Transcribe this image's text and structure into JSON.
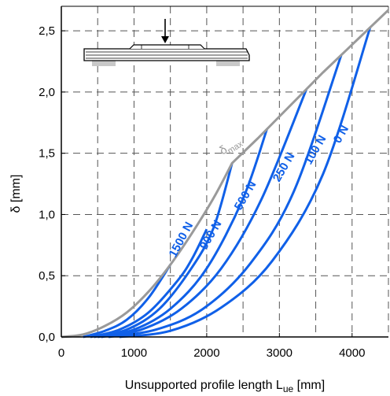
{
  "colors": {
    "curve": "#1060e8",
    "envelope": "#9a9a9a",
    "grid": "#555555"
  },
  "chart_data": {
    "type": "line",
    "xlabel": "Unsupported profile length L",
    "xlabel_sub": "ue",
    "xlabel_unit": " [mm]",
    "ylabel": "δ [mm]",
    "xlim": [
      0,
      4500
    ],
    "ylim": [
      0,
      2.7
    ],
    "xticks": [
      0,
      1000,
      2000,
      3000,
      4000
    ],
    "xtick_labels": [
      "0",
      "1000",
      "2000",
      "3000",
      "4000"
    ],
    "yticks": [
      0,
      0.5,
      1.0,
      1.5,
      2.0,
      2.5
    ],
    "ytick_labels": [
      "0,0",
      "0,5",
      "1,0",
      "1,5",
      "2,0",
      "2,5"
    ],
    "grid": true,
    "envelope": {
      "label_main": "δ",
      "label_sub": "max",
      "x": [
        0,
        300,
        600,
        900,
        1200,
        1500,
        1800,
        2100,
        2350,
        2700,
        3000,
        3300,
        3600,
        3900,
        4200,
        4500
      ],
      "values": [
        0,
        0.02,
        0.09,
        0.2,
        0.37,
        0.59,
        0.85,
        1.14,
        1.42,
        1.62,
        1.8,
        1.98,
        2.16,
        2.33,
        2.5,
        2.67
      ]
    },
    "series": [
      {
        "name": "1500 N",
        "x": [
          300,
          600,
          900,
          1200,
          1500
        ],
        "values": [
          0.0,
          0.05,
          0.14,
          0.32,
          0.59
        ]
      },
      {
        "name": "900 N",
        "x": [
          400,
          800,
          1200,
          1600,
          1800,
          2000
        ],
        "values": [
          0.0,
          0.06,
          0.2,
          0.46,
          0.64,
          0.88
        ]
      },
      {
        "name": "500 N",
        "x": [
          450,
          900,
          1350,
          1800,
          2100,
          2350
        ],
        "values": [
          0.0,
          0.06,
          0.23,
          0.57,
          0.9,
          1.42
        ]
      },
      {
        "name": "250 N",
        "x": [
          500,
          1000,
          1500,
          2000,
          2500,
          2830
        ],
        "values": [
          0.0,
          0.06,
          0.23,
          0.56,
          1.13,
          1.7
        ]
      },
      {
        "name": "100 N",
        "x": [
          550,
          1100,
          1650,
          2200,
          2750,
          3370
        ],
        "values": [
          0.0,
          0.06,
          0.23,
          0.56,
          1.12,
          2.02
        ]
      },
      {
        "name": "0 N",
        "x": [
          650,
          1300,
          1950,
          2600,
          3200,
          3850
        ],
        "values": [
          0.0,
          0.06,
          0.23,
          0.6,
          1.19,
          2.3
        ]
      },
      {
        "name": "",
        "x": [
          800,
          1500,
          2200,
          2900,
          3600,
          4250
        ],
        "values": [
          0.0,
          0.05,
          0.24,
          0.62,
          1.33,
          2.53
        ]
      }
    ]
  }
}
